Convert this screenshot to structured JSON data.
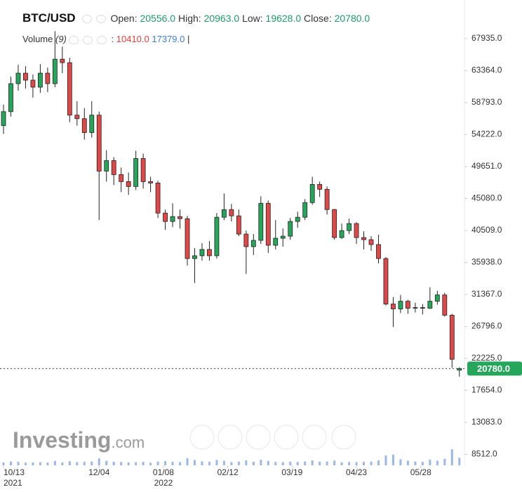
{
  "chart_data": {
    "type": "candlestick",
    "legend": {
      "symbol": "BTC/USD",
      "open_label": "Open:",
      "open": "20556.0",
      "high_label": "High:",
      "high": "20963.0",
      "low_label": "Low:",
      "low": "19628.0",
      "close_label": "Close:",
      "close": "20780.0",
      "volume_label": "Volume",
      "volume_period": "(9)",
      "volume_sep": ":",
      "volume_value": "10410.0",
      "volume_ma": "17379.0",
      "cursor": "|"
    },
    "logo": {
      "name": "Investing",
      "suffix": ".com"
    },
    "last_label": "20780.0",
    "x": [
      "2021-10-13",
      "2021-10-17",
      "2021-10-21",
      "2021-10-25",
      "2021-10-29",
      "2021-11-02",
      "2021-11-06",
      "2021-11-10",
      "2021-11-14",
      "2021-11-18",
      "2021-11-22",
      "2021-11-26",
      "2021-11-30",
      "2021-12-04",
      "2021-12-08",
      "2021-12-12",
      "2021-12-16",
      "2021-12-20",
      "2021-12-24",
      "2021-12-28",
      "2022-01-01",
      "2022-01-05",
      "2022-01-09",
      "2022-01-13",
      "2022-01-17",
      "2022-01-21",
      "2022-01-25",
      "2022-01-29",
      "2022-02-02",
      "2022-02-06",
      "2022-02-10",
      "2022-02-14",
      "2022-02-18",
      "2022-02-22",
      "2022-02-26",
      "2022-03-02",
      "2022-03-06",
      "2022-03-10",
      "2022-03-14",
      "2022-03-18",
      "2022-03-22",
      "2022-03-26",
      "2022-03-30",
      "2022-04-03",
      "2022-04-07",
      "2022-04-11",
      "2022-04-15",
      "2022-04-19",
      "2022-04-23",
      "2022-04-27",
      "2022-05-01",
      "2022-05-05",
      "2022-05-09",
      "2022-05-13",
      "2022-05-17",
      "2022-05-21",
      "2022-05-25",
      "2022-05-29",
      "2022-06-02",
      "2022-06-06",
      "2022-06-10",
      "2022-06-14",
      "2022-06-18"
    ],
    "open": [
      55500,
      57500,
      61500,
      63000,
      62000,
      61000,
      63000,
      61500,
      65000,
      64500,
      57000,
      56500,
      54500,
      57000,
      49000,
      50500,
      48500,
      47500,
      46800,
      50800,
      47500,
      47300,
      43000,
      41800,
      42500,
      42200,
      36500,
      36900,
      37800,
      36900,
      42400,
      43500,
      42600,
      40000,
      38200,
      39100,
      44400,
      38400,
      39400,
      39700,
      41800,
      42400,
      44500,
      47100,
      46400,
      43500,
      39500,
      40500,
      41500,
      39500,
      39200,
      38500,
      36500,
      30000,
      29300,
      30400,
      29400,
      29500,
      29400,
      30400,
      31300,
      28400,
      20556
    ],
    "high": [
      58500,
      62500,
      64200,
      64000,
      62800,
      64300,
      63800,
      69000,
      66800,
      65200,
      59000,
      58000,
      59000,
      57500,
      52000,
      51000,
      49500,
      48800,
      51900,
      51500,
      48200,
      47600,
      43500,
      44400,
      43500,
      42600,
      38000,
      38700,
      39000,
      43000,
      45800,
      44300,
      43500,
      40500,
      40000,
      45400,
      44800,
      42000,
      40800,
      42300,
      43200,
      45000,
      48200,
      47500,
      46800,
      43600,
      41500,
      42200,
      41700,
      40400,
      39700,
      39900,
      36700,
      31000,
      31300,
      30600,
      30200,
      30000,
      32400,
      31900,
      31600,
      28600,
      20963
    ],
    "low": [
      54300,
      56800,
      60500,
      60800,
      59500,
      60200,
      60300,
      61000,
      63000,
      56000,
      55500,
      53500,
      53800,
      42000,
      47500,
      47000,
      46000,
      45600,
      46300,
      46500,
      46000,
      42300,
      40600,
      41000,
      40800,
      35500,
      33000,
      36200,
      36200,
      36500,
      42000,
      41800,
      39700,
      34300,
      37000,
      38600,
      37300,
      37800,
      38200,
      39200,
      40900,
      42000,
      44200,
      45300,
      42800,
      39200,
      39300,
      40000,
      38600,
      37800,
      37600,
      35800,
      29800,
      26700,
      28700,
      28600,
      28800,
      28500,
      29300,
      29900,
      28200,
      20900,
      19628
    ],
    "close": [
      57500,
      61500,
      63000,
      62000,
      61000,
      63000,
      61500,
      65000,
      64500,
      57000,
      56500,
      54500,
      57000,
      49000,
      50500,
      48500,
      47500,
      46800,
      50800,
      47500,
      47300,
      43000,
      41800,
      42500,
      42200,
      36500,
      36900,
      37800,
      36900,
      42400,
      43500,
      42600,
      40000,
      38200,
      39100,
      44400,
      38400,
      39400,
      39700,
      41800,
      42400,
      44500,
      47100,
      46400,
      43500,
      39500,
      40500,
      41500,
      39500,
      39200,
      38500,
      36500,
      30000,
      29300,
      30400,
      29400,
      29500,
      29400,
      30400,
      31300,
      28400,
      22100,
      20780
    ],
    "volume": [
      4000,
      5200,
      4800,
      3600,
      3900,
      4300,
      3700,
      6100,
      4100,
      5600,
      4400,
      4700,
      5200,
      9500,
      6200,
      4800,
      4600,
      4100,
      4300,
      4700,
      3500,
      5100,
      5800,
      4900,
      4400,
      9800,
      7200,
      5300,
      4800,
      7400,
      6200,
      4500,
      5200,
      6800,
      4900,
      7600,
      6100,
      4700,
      4300,
      5000,
      4600,
      5200,
      6700,
      4900,
      5100,
      6500,
      4200,
      4500,
      4400,
      4700,
      5100,
      6800,
      13500,
      14800,
      8200,
      6400,
      5200,
      4900,
      7800,
      6300,
      8900,
      22000,
      10410
    ],
    "up_color": "#26a65b",
    "down_color": "#e04848",
    "volume_color": "#9bb8e8",
    "ylim": [
      7000,
      72000
    ],
    "volume_ylim": [
      0,
      60000
    ],
    "yticks": [
      {
        "value": 8512,
        "label": "8512.0"
      },
      {
        "value": 13083,
        "label": "13083.0"
      },
      {
        "value": 17654,
        "label": "17654.0"
      },
      {
        "value": 22225,
        "label": "22225.0"
      },
      {
        "value": 26796,
        "label": "26796.0"
      },
      {
        "value": 31367,
        "label": "31367.0"
      },
      {
        "value": 35938,
        "label": "35938.0"
      },
      {
        "value": 40509,
        "label": "40509.0"
      },
      {
        "value": 45080,
        "label": "45080.0"
      },
      {
        "value": 49651,
        "label": "49651.0"
      },
      {
        "value": 54222,
        "label": "54222.0"
      },
      {
        "value": 58793,
        "label": "58793.0"
      },
      {
        "value": 63364,
        "label": "63364.0"
      },
      {
        "value": 67935,
        "label": "67935.0"
      }
    ],
    "xticks": [
      {
        "value": "2021-10-13",
        "label": "10/13",
        "year": "2021"
      },
      {
        "value": "2021-12-04",
        "label": "12/04"
      },
      {
        "value": "2022-01-08",
        "label": "01/08",
        "year": "2022"
      },
      {
        "value": "2022-02-12",
        "label": "02/12"
      },
      {
        "value": "2022-03-19",
        "label": "03/19"
      },
      {
        "value": "2022-04-23",
        "label": "04/23"
      },
      {
        "value": "2022-05-28",
        "label": "05/28"
      }
    ]
  }
}
